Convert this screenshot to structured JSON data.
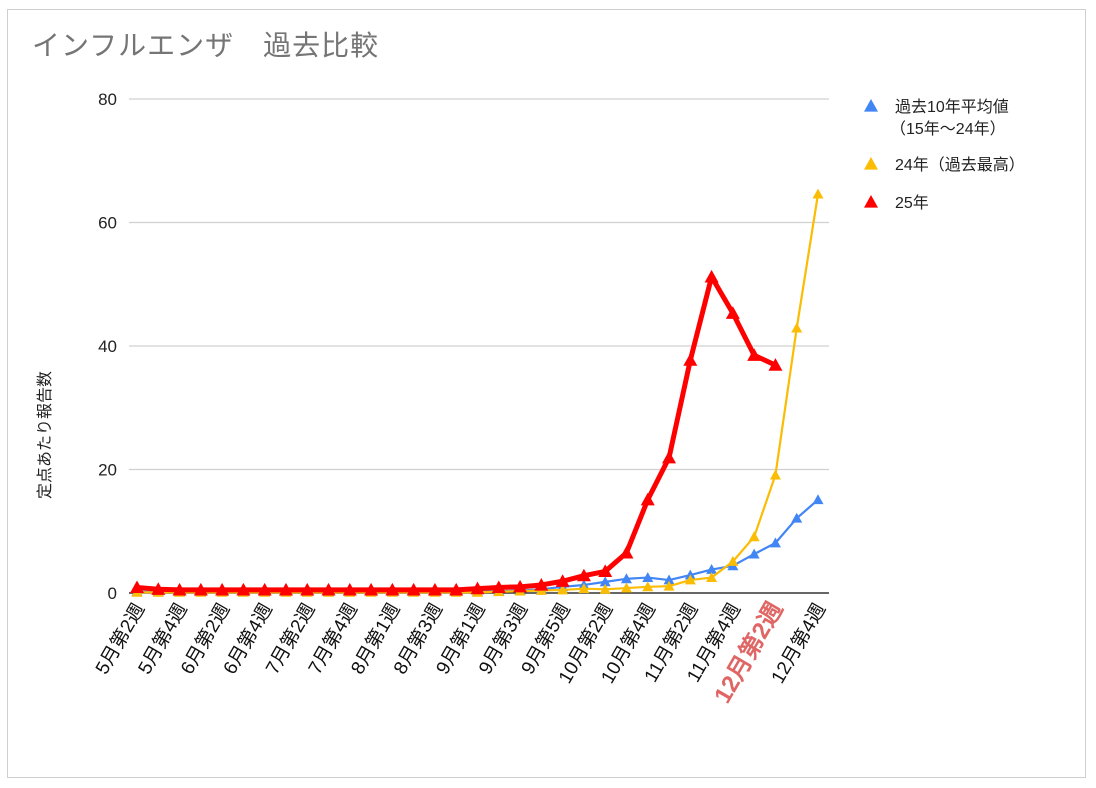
{
  "chart_data": {
    "type": "line",
    "title": "インフルエンザ　過去比較",
    "xlabel": "",
    "ylabel": "定点あたり報告数",
    "ylim": [
      0,
      80
    ],
    "yticks": [
      0,
      20,
      40,
      60,
      80
    ],
    "grid": true,
    "legend_position": "right",
    "x_tick_labels": [
      "5月第2週",
      "",
      "5月第4週",
      "",
      "6月第2週",
      "",
      "6月第4週",
      "",
      "7月第2週",
      "",
      "7月第4週",
      "",
      "8月第1週",
      "",
      "8月第3週",
      "",
      "9月第1週",
      "",
      "9月第3週",
      "",
      "9月第5週",
      "",
      "10月第2週",
      "",
      "10月第4週",
      "",
      "11月第2週",
      "",
      "11月第4週",
      "",
      "12月第2週",
      "",
      "12月第4週"
    ],
    "highlighted_label": "12月第2週",
    "highlight_color": "#e06666",
    "series": [
      {
        "name": "過去10年平均値\n（15年〜24年）",
        "legend_lines": [
          "過去10年平均値",
          "（15年〜24年）"
        ],
        "color": "#4285f4",
        "values": [
          0.2,
          0.2,
          0.2,
          0.2,
          0.2,
          0.2,
          0.2,
          0.2,
          0.2,
          0.2,
          0.2,
          0.2,
          0.2,
          0.2,
          0.2,
          0.2,
          0.2,
          0.3,
          0.4,
          0.6,
          1.0,
          1.3,
          1.8,
          2.3,
          2.5,
          2.1,
          2.9,
          3.8,
          4.4,
          6.3,
          8.1,
          12.1,
          15.1
        ]
      },
      {
        "name": "24年（過去最高）",
        "legend_lines": [
          "24年（過去最高）"
        ],
        "color": "#fbbc04",
        "values": [
          0.1,
          0.1,
          0.1,
          0.1,
          0.1,
          0.1,
          0.1,
          0.1,
          0.1,
          0.1,
          0.1,
          0.1,
          0.1,
          0.1,
          0.1,
          0.1,
          0.1,
          0.2,
          0.3,
          0.4,
          0.5,
          0.7,
          0.6,
          0.8,
          1.0,
          1.1,
          2.1,
          2.5,
          5.1,
          9.1,
          19.1,
          42.9,
          64.6
        ]
      },
      {
        "name": "25年",
        "legend_lines": [
          "25年"
        ],
        "color": "#ff0000",
        "values": [
          0.9,
          0.6,
          0.5,
          0.5,
          0.5,
          0.5,
          0.5,
          0.5,
          0.5,
          0.5,
          0.5,
          0.5,
          0.5,
          0.5,
          0.5,
          0.5,
          0.7,
          0.9,
          1.0,
          1.3,
          1.9,
          2.8,
          3.5,
          6.5,
          15.1,
          21.9,
          37.7,
          51.2,
          45.3,
          38.5,
          36.9,
          null,
          null
        ]
      }
    ]
  }
}
